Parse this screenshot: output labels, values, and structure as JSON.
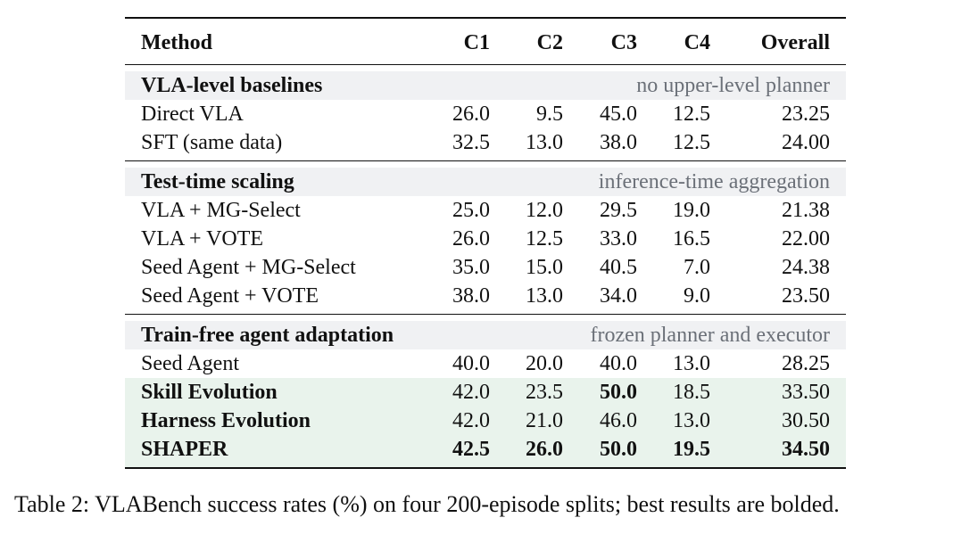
{
  "table": {
    "headers": {
      "method": "Method",
      "c1": "C1",
      "c2": "C2",
      "c3": "C3",
      "c4": "C4",
      "overall": "Overall"
    },
    "sections": [
      {
        "title": "VLA-level baselines",
        "note": "no upper-level planner",
        "rows": [
          {
            "method": "Direct VLA",
            "c1": "26.0",
            "c2": "9.5",
            "c3": "45.0",
            "c4": "12.5",
            "overall": "23.25"
          },
          {
            "method": "SFT (same data)",
            "c1": "32.5",
            "c2": "13.0",
            "c3": "38.0",
            "c4": "12.5",
            "overall": "24.00"
          }
        ]
      },
      {
        "title": "Test-time scaling",
        "note": "inference-time aggregation",
        "rows": [
          {
            "method": "VLA + MG-Select",
            "c1": "25.0",
            "c2": "12.0",
            "c3": "29.5",
            "c4": "19.0",
            "overall": "21.38"
          },
          {
            "method": "VLA + VOTE",
            "c1": "26.0",
            "c2": "12.5",
            "c3": "33.0",
            "c4": "16.5",
            "overall": "22.00"
          },
          {
            "method": "Seed Agent + MG-Select",
            "c1": "35.0",
            "c2": "15.0",
            "c3": "40.5",
            "c4": "7.0",
            "overall": "24.38"
          },
          {
            "method": "Seed Agent + VOTE",
            "c1": "38.0",
            "c2": "13.0",
            "c3": "34.0",
            "c4": "9.0",
            "overall": "23.50"
          }
        ]
      },
      {
        "title": "Train-free agent adaptation",
        "note": "frozen planner and executor",
        "rows": [
          {
            "method": "Seed Agent",
            "c1": "40.0",
            "c2": "20.0",
            "c3": "40.0",
            "c4": "13.0",
            "overall": "28.25"
          },
          {
            "method": "Skill Evolution",
            "c1": "42.0",
            "c2": "23.5",
            "c3": "50.0",
            "c4": "18.5",
            "overall": "33.50"
          },
          {
            "method": "Harness Evolution",
            "c1": "42.0",
            "c2": "21.0",
            "c3": "46.0",
            "c4": "13.0",
            "overall": "30.50"
          },
          {
            "method": "SHAPER",
            "c1": "42.5",
            "c2": "26.0",
            "c3": "50.0",
            "c4": "19.5",
            "overall": "34.50"
          }
        ]
      }
    ]
  },
  "caption": "Table 2: VLABench success rates (%) on four 200-episode splits; best results are bolded.",
  "colors": {
    "section_band": "#f0f1f3",
    "section_note": "#6b7078",
    "highlight_band": "#e9f3ec"
  }
}
